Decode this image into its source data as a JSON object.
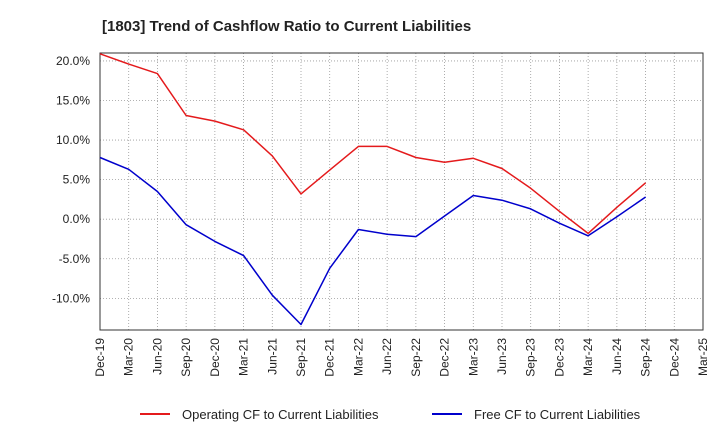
{
  "chart_data": {
    "type": "line",
    "title": "[1803]  Trend of Cashflow Ratio to Current Liabilities",
    "xlabel": "",
    "ylabel": "",
    "categories": [
      "Dec-19",
      "Mar-20",
      "Jun-20",
      "Sep-20",
      "Dec-20",
      "Mar-21",
      "Jun-21",
      "Sep-21",
      "Dec-21",
      "Mar-22",
      "Jun-22",
      "Sep-22",
      "Dec-22",
      "Mar-23",
      "Jun-23",
      "Sep-23",
      "Dec-23",
      "Mar-24",
      "Jun-24",
      "Sep-24",
      "Dec-24",
      "Mar-25"
    ],
    "ylim": [
      -14.0,
      21.0
    ],
    "yticks": [
      20,
      15,
      10,
      5,
      0,
      -5,
      -10
    ],
    "ytick_labels": [
      "20.0%",
      "15.0%",
      "10.0%",
      "5.0%",
      "0.0%",
      "-5.0%",
      "-10.0%"
    ],
    "grid": true,
    "legend_position": "bottom",
    "series": [
      {
        "name": "Operating CF to Current Liabilities",
        "color": "#e41a1c",
        "values": [
          20.9,
          19.6,
          18.4,
          13.1,
          12.4,
          11.3,
          8.0,
          3.2,
          6.2,
          9.2,
          9.2,
          7.8,
          7.2,
          7.7,
          6.4,
          3.9,
          1.0,
          -1.8,
          1.5,
          4.6,
          null,
          null
        ]
      },
      {
        "name": "Free CF to Current Liabilities",
        "color": "#0000cc",
        "values": [
          7.8,
          6.3,
          3.5,
          -0.7,
          -2.8,
          -4.6,
          -9.6,
          -13.3,
          -6.2,
          -1.3,
          -1.9,
          -2.2,
          0.4,
          3.0,
          2.4,
          1.3,
          -0.5,
          -2.1,
          0.3,
          2.8,
          null,
          null
        ]
      }
    ]
  }
}
